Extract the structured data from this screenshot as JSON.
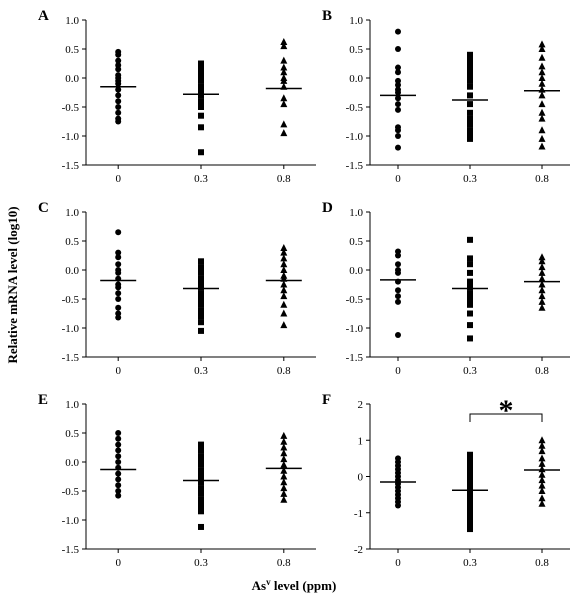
{
  "figure": {
    "ylabel": "Relative mRNA level (log10)",
    "xlabel_main": "As",
    "xlabel_sup": "v",
    "xlabel_rest": " level (ppm)"
  },
  "chart_data": [
    {
      "type": "scatter",
      "panel": "A",
      "categories": [
        "0",
        "0.3",
        "0.8"
      ],
      "yticks": [
        "1.0",
        "0.5",
        "0.0",
        "-0.5",
        "-1.0",
        "-1.5"
      ],
      "ylim": [
        -1.5,
        1.0
      ],
      "series": [
        {
          "marker": "circle",
          "mean": -0.15,
          "values": [
            0.45,
            0.4,
            0.3,
            0.22,
            0.15,
            0.05,
            0.0,
            -0.05,
            -0.1,
            -0.2,
            -0.3,
            -0.4,
            -0.5,
            -0.6,
            -0.7,
            -0.75
          ]
        },
        {
          "marker": "square",
          "mean": -0.28,
          "values": [
            0.25,
            0.2,
            0.15,
            0.1,
            0.05,
            -0.05,
            -0.15,
            -0.2,
            -0.3,
            -0.4,
            -0.5,
            -0.65,
            -0.85,
            -1.28
          ]
        },
        {
          "marker": "triangle",
          "mean": -0.18,
          "values": [
            0.62,
            0.55,
            0.3,
            0.18,
            0.1,
            0.0,
            -0.05,
            -0.15,
            -0.35,
            -0.45,
            -0.8,
            -0.95
          ]
        }
      ]
    },
    {
      "type": "scatter",
      "panel": "B",
      "categories": [
        "0",
        "0.3",
        "0.8"
      ],
      "yticks": [
        "1.0",
        "0.5",
        "0.0",
        "-0.5",
        "-1.0",
        "-1.5"
      ],
      "ylim": [
        -1.5,
        1.0
      ],
      "series": [
        {
          "marker": "circle",
          "mean": -0.3,
          "values": [
            0.8,
            0.5,
            0.18,
            0.1,
            -0.05,
            -0.12,
            -0.2,
            -0.25,
            -0.35,
            -0.45,
            -0.55,
            -0.85,
            -0.9,
            -1.0,
            -1.2
          ]
        },
        {
          "marker": "square",
          "mean": -0.38,
          "values": [
            0.4,
            0.35,
            0.3,
            0.25,
            0.2,
            0.15,
            0.1,
            0.05,
            -0.05,
            -0.15,
            -0.3,
            -0.45,
            -0.6,
            -0.7,
            -0.8,
            -0.9,
            -1.0,
            -1.05
          ]
        },
        {
          "marker": "triangle",
          "mean": -0.22,
          "values": [
            0.58,
            0.5,
            0.35,
            0.2,
            0.1,
            0.0,
            -0.1,
            -0.2,
            -0.3,
            -0.45,
            -0.6,
            -0.7,
            -0.9,
            -1.05,
            -1.18
          ]
        }
      ]
    },
    {
      "type": "scatter",
      "panel": "C",
      "categories": [
        "0",
        "0.3",
        "0.8"
      ],
      "yticks": [
        "1.0",
        "0.5",
        "0.0",
        "-0.5",
        "-1.0",
        "-1.5"
      ],
      "ylim": [
        -1.5,
        1.0
      ],
      "series": [
        {
          "marker": "circle",
          "mean": -0.18,
          "values": [
            0.65,
            0.3,
            0.22,
            0.1,
            0.0,
            -0.05,
            -0.15,
            -0.25,
            -0.3,
            -0.4,
            -0.5,
            -0.65,
            -0.75,
            -0.82
          ]
        },
        {
          "marker": "square",
          "mean": -0.32,
          "values": [
            0.15,
            0.05,
            0.0,
            -0.05,
            -0.15,
            -0.25,
            -0.3,
            -0.4,
            -0.5,
            -0.6,
            -0.7,
            -0.8,
            -0.9,
            -1.05
          ]
        },
        {
          "marker": "triangle",
          "mean": -0.18,
          "values": [
            0.38,
            0.3,
            0.2,
            0.1,
            0.0,
            -0.1,
            -0.15,
            -0.25,
            -0.35,
            -0.45,
            -0.6,
            -0.75,
            -0.95
          ]
        }
      ]
    },
    {
      "type": "scatter",
      "panel": "D",
      "categories": [
        "0",
        "0.3",
        "0.8"
      ],
      "yticks": [
        "1.0",
        "0.5",
        "0.0",
        "-0.5",
        "-1.0",
        "-1.5"
      ],
      "ylim": [
        -1.5,
        1.0
      ],
      "series": [
        {
          "marker": "circle",
          "mean": -0.17,
          "values": [
            0.32,
            0.25,
            0.1,
            0.0,
            -0.05,
            -0.2,
            -0.35,
            -0.45,
            -0.55,
            -1.12
          ]
        },
        {
          "marker": "square",
          "mean": -0.32,
          "values": [
            0.52,
            0.2,
            0.1,
            -0.05,
            -0.2,
            -0.3,
            -0.4,
            -0.5,
            -0.6,
            -0.75,
            -0.95,
            -1.18
          ]
        },
        {
          "marker": "triangle",
          "mean": -0.2,
          "values": [
            0.22,
            0.15,
            0.05,
            -0.05,
            -0.15,
            -0.25,
            -0.35,
            -0.45,
            -0.55,
            -0.65
          ]
        }
      ]
    },
    {
      "type": "scatter",
      "panel": "E",
      "categories": [
        "0",
        "0.3",
        "0.8"
      ],
      "yticks": [
        "1.0",
        "0.5",
        "0.0",
        "-0.5",
        "-1.0",
        "-1.5"
      ],
      "ylim": [
        -1.5,
        1.0
      ],
      "series": [
        {
          "marker": "circle",
          "mean": -0.13,
          "values": [
            0.5,
            0.4,
            0.3,
            0.2,
            0.1,
            0.0,
            -0.1,
            -0.2,
            -0.3,
            -0.4,
            -0.5,
            -0.58
          ]
        },
        {
          "marker": "square",
          "mean": -0.32,
          "values": [
            0.3,
            0.2,
            0.1,
            0.05,
            -0.05,
            -0.15,
            -0.25,
            -0.35,
            -0.45,
            -0.55,
            -0.65,
            -0.75,
            -0.85,
            -1.12
          ]
        },
        {
          "marker": "triangle",
          "mean": -0.11,
          "values": [
            0.45,
            0.35,
            0.25,
            0.15,
            0.05,
            -0.05,
            -0.15,
            -0.25,
            -0.35,
            -0.45,
            -0.55,
            -0.65
          ]
        }
      ]
    },
    {
      "type": "scatter",
      "panel": "F",
      "categories": [
        "0",
        "0.3",
        "0.8"
      ],
      "yticks": [
        "2",
        "1",
        "0",
        "-1",
        "-2"
      ],
      "ylim": [
        -2,
        2
      ],
      "significance": {
        "from": "0.3",
        "to": "0.8",
        "label": "*"
      },
      "series": [
        {
          "marker": "circle",
          "mean": -0.15,
          "values": [
            0.5,
            0.4,
            0.3,
            0.2,
            0.1,
            0.0,
            -0.1,
            -0.2,
            -0.3,
            -0.4,
            -0.5,
            -0.6,
            -0.7,
            -0.8
          ]
        },
        {
          "marker": "square",
          "mean": -0.38,
          "values": [
            0.6,
            0.45,
            0.3,
            0.15,
            0.0,
            -0.1,
            -0.2,
            -0.3,
            -0.4,
            -0.5,
            -0.6,
            -0.7,
            -0.8,
            -0.9,
            -1.0,
            -1.1,
            -1.2,
            -1.3,
            -1.45
          ]
        },
        {
          "marker": "triangle",
          "mean": 0.18,
          "values": [
            1.0,
            0.85,
            0.7,
            0.5,
            0.35,
            0.2,
            0.05,
            -0.1,
            -0.25,
            -0.4,
            -0.6,
            -0.75
          ]
        }
      ]
    }
  ]
}
